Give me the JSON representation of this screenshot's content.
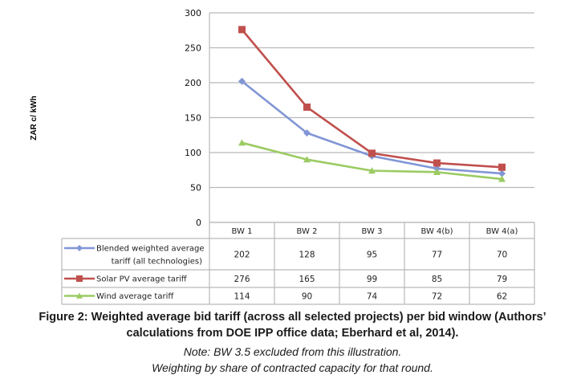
{
  "chart_data": {
    "type": "line",
    "title": "",
    "xlabel": "",
    "ylabel": "ZAR c/ kWh",
    "ylim": [
      0,
      300
    ],
    "yticks": [
      0,
      50,
      100,
      150,
      200,
      250,
      300
    ],
    "ytick_labels": [
      "0",
      "50",
      "100",
      "150",
      "200",
      "250",
      "300"
    ],
    "grid": true,
    "legend_placement": "data-table-left",
    "categories": [
      "BW 1",
      "BW 2",
      "BW 3",
      "BW 4(b)",
      "BW 4(a)"
    ],
    "series": [
      {
        "name": "Blended weighted average tariff (all technologies)",
        "label_lines": [
          "Blended weighted average",
          "tariff (all technologies)"
        ],
        "marker": "diamond",
        "color": "#8196D5",
        "values": [
          202,
          128,
          95,
          77,
          70
        ]
      },
      {
        "name": "Solar PV average tariff",
        "label_lines": [
          "Solar PV average tariff"
        ],
        "marker": "square",
        "color": "#C0504D",
        "values": [
          276,
          165,
          99,
          85,
          79
        ]
      },
      {
        "name": "Wind average tariff",
        "label_lines": [
          "Wind average tariff"
        ],
        "marker": "triangle",
        "color": "#9BCB62",
        "values": [
          114,
          90,
          74,
          72,
          62
        ]
      }
    ]
  },
  "caption": {
    "title_line1": "Figure 2: Weighted average bid tariff (across all selected projects) per bid window (Authors’",
    "title_line2": "calculations from DOE IPP office data; Eberhard et al, 2014).",
    "note_line1": "Note: BW 3.5 excluded from this illustration.",
    "note_line2": "Weighting by share of contracted capacity for that round."
  }
}
